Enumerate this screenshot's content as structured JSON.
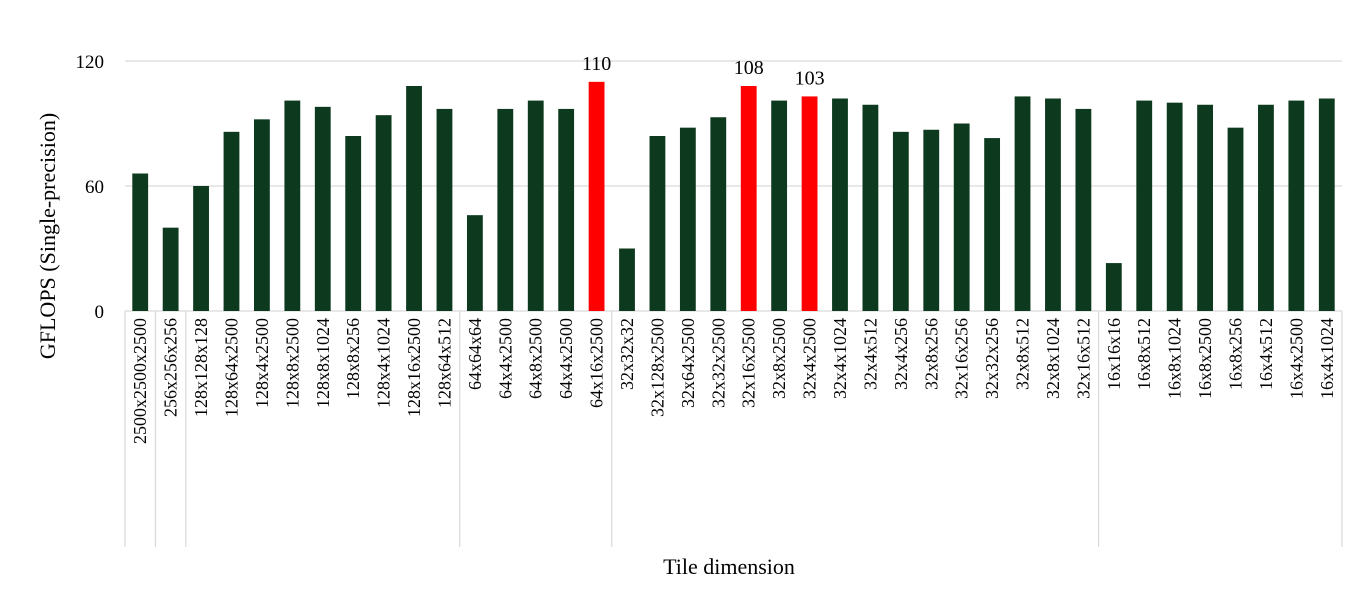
{
  "chart_data": {
    "type": "bar",
    "title": "",
    "xlabel": "Tile dimension",
    "ylabel": "GFLOPS (Single-precision)",
    "ylim": [
      0,
      120
    ],
    "yticks": [
      0,
      60,
      120
    ],
    "grid": true,
    "legend": "none",
    "categories": [
      "2500x2500x2500",
      "256x256x256",
      "128x128x128",
      "128x64x2500",
      "128x4x2500",
      "128x8x2500",
      "128x8x1024",
      "128x8x256",
      "128x4x1024",
      "128x16x2500",
      "128x64x512",
      "64x64x64",
      "64x4x2500",
      "64x8x2500",
      "64x4x2500",
      "64x16x2500",
      "32x32x32",
      "32x128x2500",
      "32x64x2500",
      "32x32x2500",
      "32x16x2500",
      "32x8x2500",
      "32x4x2500",
      "32x4x1024",
      "32x4x512",
      "32x4x256",
      "32x8x256",
      "32x16x256",
      "32x32x256",
      "32x8x512",
      "32x8x1024",
      "32x16x512",
      "16x16x16",
      "16x8x512",
      "16x8x1024",
      "16x8x2500",
      "16x8x256",
      "16x4x512",
      "16x4x2500",
      "16x4x1024"
    ],
    "values": [
      66,
      40,
      60,
      86,
      92,
      101,
      98,
      84,
      94,
      108,
      97,
      46,
      97,
      101,
      97,
      110,
      30,
      84,
      88,
      93,
      108,
      101,
      103,
      102,
      99,
      86,
      87,
      90,
      83,
      103,
      102,
      97,
      23,
      101,
      100,
      99,
      88,
      99,
      101,
      102
    ],
    "highlighted_indices": [
      15,
      20,
      22
    ],
    "data_labels": [
      {
        "index": 15,
        "text": "110"
      },
      {
        "index": 20,
        "text": "108"
      },
      {
        "index": 22,
        "text": "103"
      }
    ],
    "group_boundaries_after": [
      0,
      1,
      10,
      15,
      31
    ],
    "colors": {
      "bar": "#0d3a1f",
      "highlight": "#ff0000",
      "grid": "#d9d9d9"
    }
  }
}
